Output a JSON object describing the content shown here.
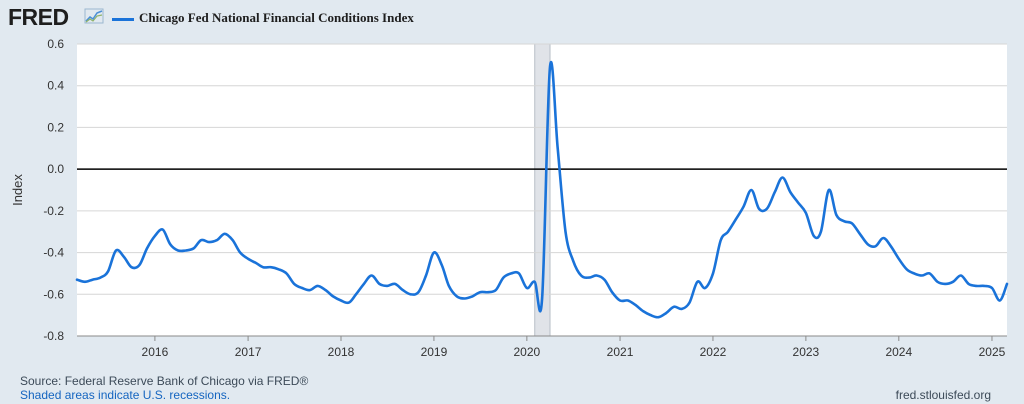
{
  "header": {
    "logo_text": "FRED",
    "logo_icon": "fred-sparkline-icon"
  },
  "footer": {
    "source": "Source: Federal Reserve Bank of Chicago via FRED®",
    "recession_note": "Shaded areas indicate U.S. recessions.",
    "site": "fred.stlouisfed.org"
  },
  "colors": {
    "line": "#1a73d9",
    "plot_background": "#ffffff",
    "page_background": "#e1e9f0",
    "recession_shade": "#e0e3e8",
    "zero_line": "#000000"
  },
  "chart_data": {
    "type": "line",
    "title": "",
    "xlabel": "",
    "ylabel": "Index",
    "ylim": [
      -0.8,
      0.6
    ],
    "yticks": [
      0.6,
      0.4,
      0.2,
      0.0,
      -0.2,
      -0.4,
      -0.6,
      -0.8
    ],
    "ytick_labels": [
      "0.6",
      "0.4",
      "0.2",
      "0.0",
      "-0.2",
      "-0.4",
      "-0.6",
      "-0.8"
    ],
    "xlim": [
      "2015-03-01",
      "2025-03-01"
    ],
    "xticks": [
      "2016",
      "2017",
      "2018",
      "2019",
      "2020",
      "2021",
      "2022",
      "2023",
      "2024",
      "2025"
    ],
    "grid": "horizontal",
    "legend_position": "top-left",
    "recessions": [
      {
        "start": "2020-02-01",
        "end": "2020-04-01"
      }
    ],
    "series": [
      {
        "name": "Chicago Fed National Financial Conditions Index",
        "color": "#1a73d9",
        "points": [
          [
            "2015-03-01",
            -0.53
          ],
          [
            "2015-04-01",
            -0.54
          ],
          [
            "2015-05-01",
            -0.53
          ],
          [
            "2015-06-01",
            -0.52
          ],
          [
            "2015-07-01",
            -0.49
          ],
          [
            "2015-08-01",
            -0.39
          ],
          [
            "2015-09-01",
            -0.42
          ],
          [
            "2015-10-01",
            -0.47
          ],
          [
            "2015-11-01",
            -0.46
          ],
          [
            "2015-12-01",
            -0.38
          ],
          [
            "2016-01-01",
            -0.32
          ],
          [
            "2016-02-01",
            -0.29
          ],
          [
            "2016-03-01",
            -0.36
          ],
          [
            "2016-04-01",
            -0.39
          ],
          [
            "2016-05-01",
            -0.39
          ],
          [
            "2016-06-01",
            -0.38
          ],
          [
            "2016-07-01",
            -0.34
          ],
          [
            "2016-08-01",
            -0.35
          ],
          [
            "2016-09-01",
            -0.34
          ],
          [
            "2016-10-01",
            -0.31
          ],
          [
            "2016-11-01",
            -0.34
          ],
          [
            "2016-12-01",
            -0.4
          ],
          [
            "2017-01-01",
            -0.43
          ],
          [
            "2017-02-01",
            -0.45
          ],
          [
            "2017-03-01",
            -0.47
          ],
          [
            "2017-04-01",
            -0.47
          ],
          [
            "2017-05-01",
            -0.48
          ],
          [
            "2017-06-01",
            -0.5
          ],
          [
            "2017-07-01",
            -0.55
          ],
          [
            "2017-08-01",
            -0.57
          ],
          [
            "2017-09-01",
            -0.58
          ],
          [
            "2017-10-01",
            -0.56
          ],
          [
            "2017-11-01",
            -0.58
          ],
          [
            "2017-12-01",
            -0.61
          ],
          [
            "2018-01-01",
            -0.63
          ],
          [
            "2018-02-01",
            -0.64
          ],
          [
            "2018-03-01",
            -0.6
          ],
          [
            "2018-04-01",
            -0.55
          ],
          [
            "2018-05-01",
            -0.51
          ],
          [
            "2018-06-01",
            -0.55
          ],
          [
            "2018-07-01",
            -0.56
          ],
          [
            "2018-08-01",
            -0.55
          ],
          [
            "2018-09-01",
            -0.58
          ],
          [
            "2018-10-01",
            -0.6
          ],
          [
            "2018-11-01",
            -0.59
          ],
          [
            "2018-12-01",
            -0.51
          ],
          [
            "2019-01-01",
            -0.4
          ],
          [
            "2019-02-01",
            -0.46
          ],
          [
            "2019-03-01",
            -0.56
          ],
          [
            "2019-04-01",
            -0.61
          ],
          [
            "2019-05-01",
            -0.62
          ],
          [
            "2019-06-01",
            -0.61
          ],
          [
            "2019-07-01",
            -0.59
          ],
          [
            "2019-08-01",
            -0.59
          ],
          [
            "2019-09-01",
            -0.58
          ],
          [
            "2019-10-01",
            -0.52
          ],
          [
            "2019-11-01",
            -0.5
          ],
          [
            "2019-12-01",
            -0.5
          ],
          [
            "2020-01-01",
            -0.57
          ],
          [
            "2020-02-01",
            -0.54
          ],
          [
            "2020-03-01",
            -0.62
          ],
          [
            "2020-04-01",
            0.49
          ],
          [
            "2020-05-01",
            0.1
          ],
          [
            "2020-06-01",
            -0.3
          ],
          [
            "2020-07-01",
            -0.44
          ],
          [
            "2020-08-01",
            -0.51
          ],
          [
            "2020-09-01",
            -0.52
          ],
          [
            "2020-10-01",
            -0.51
          ],
          [
            "2020-11-01",
            -0.53
          ],
          [
            "2020-12-01",
            -0.59
          ],
          [
            "2021-01-01",
            -0.63
          ],
          [
            "2021-02-01",
            -0.63
          ],
          [
            "2021-03-01",
            -0.65
          ],
          [
            "2021-04-01",
            -0.68
          ],
          [
            "2021-05-01",
            -0.7
          ],
          [
            "2021-06-01",
            -0.71
          ],
          [
            "2021-07-01",
            -0.69
          ],
          [
            "2021-08-01",
            -0.66
          ],
          [
            "2021-09-01",
            -0.67
          ],
          [
            "2021-10-01",
            -0.64
          ],
          [
            "2021-11-01",
            -0.54
          ],
          [
            "2021-12-01",
            -0.57
          ],
          [
            "2022-01-01",
            -0.5
          ],
          [
            "2022-02-01",
            -0.34
          ],
          [
            "2022-03-01",
            -0.3
          ],
          [
            "2022-04-01",
            -0.24
          ],
          [
            "2022-05-01",
            -0.18
          ],
          [
            "2022-06-01",
            -0.1
          ],
          [
            "2022-07-01",
            -0.19
          ],
          [
            "2022-08-01",
            -0.19
          ],
          [
            "2022-09-01",
            -0.11
          ],
          [
            "2022-10-01",
            -0.04
          ],
          [
            "2022-11-01",
            -0.11
          ],
          [
            "2022-12-01",
            -0.16
          ],
          [
            "2023-01-01",
            -0.21
          ],
          [
            "2023-02-01",
            -0.32
          ],
          [
            "2023-03-01",
            -0.3
          ],
          [
            "2023-04-01",
            -0.1
          ],
          [
            "2023-05-01",
            -0.22
          ],
          [
            "2023-06-01",
            -0.25
          ],
          [
            "2023-07-01",
            -0.26
          ],
          [
            "2023-08-01",
            -0.31
          ],
          [
            "2023-09-01",
            -0.36
          ],
          [
            "2023-10-01",
            -0.37
          ],
          [
            "2023-11-01",
            -0.33
          ],
          [
            "2023-12-01",
            -0.37
          ],
          [
            "2024-01-01",
            -0.43
          ],
          [
            "2024-02-01",
            -0.48
          ],
          [
            "2024-03-01",
            -0.5
          ],
          [
            "2024-04-01",
            -0.51
          ],
          [
            "2024-05-01",
            -0.5
          ],
          [
            "2024-06-01",
            -0.54
          ],
          [
            "2024-07-01",
            -0.55
          ],
          [
            "2024-08-01",
            -0.54
          ],
          [
            "2024-09-01",
            -0.51
          ],
          [
            "2024-10-01",
            -0.55
          ],
          [
            "2024-11-01",
            -0.56
          ],
          [
            "2024-12-01",
            -0.56
          ],
          [
            "2025-01-01",
            -0.57
          ],
          [
            "2025-02-01",
            -0.63
          ],
          [
            "2025-03-01",
            -0.55
          ]
        ]
      }
    ]
  }
}
